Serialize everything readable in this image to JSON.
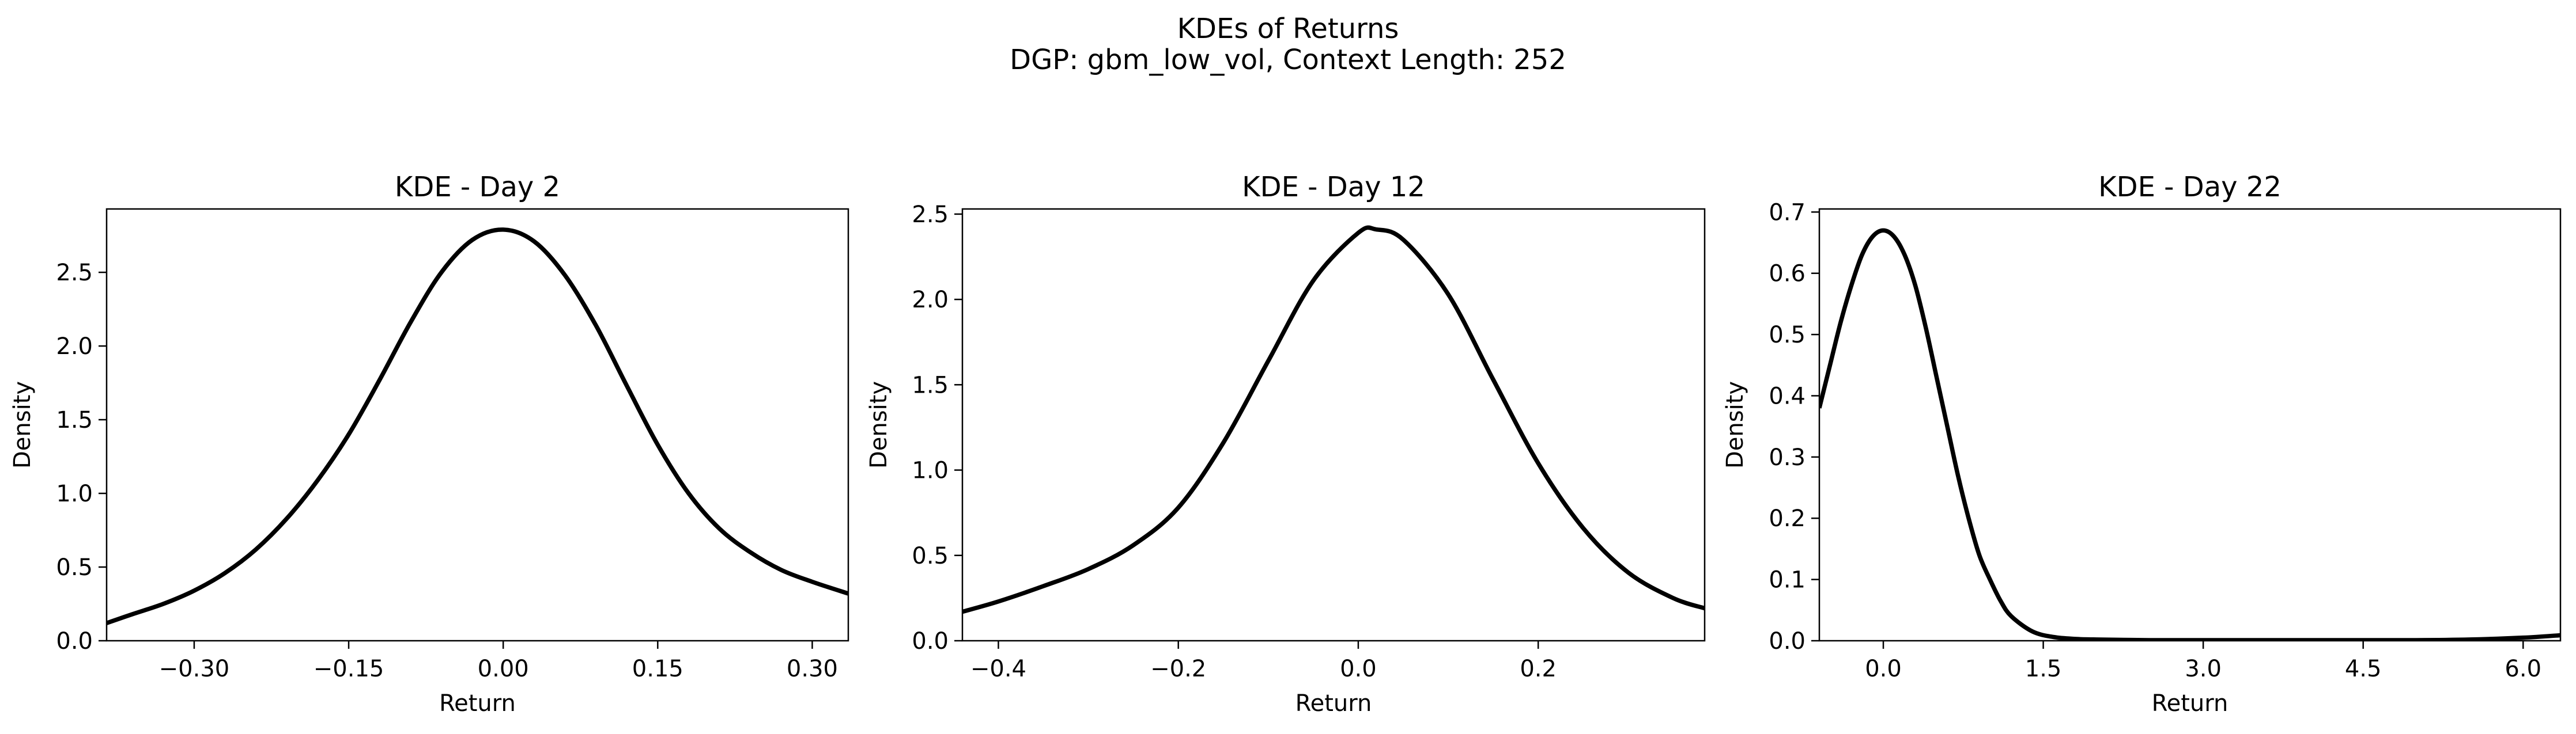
{
  "figure": {
    "title_line1": "KDEs of Returns",
    "title_line2": "DGP: gbm_low_vol, Context Length: 252"
  },
  "colors": {
    "line": "#000000",
    "axes": "#000000",
    "background": "#ffffff"
  },
  "chart_data": [
    {
      "type": "line",
      "title": "KDE - Day 2",
      "xlabel": "Return",
      "ylabel": "Density",
      "xlim": [
        -0.385,
        0.335
      ],
      "ylim": [
        0,
        2.93
      ],
      "xticks": [
        -0.3,
        -0.15,
        0.0,
        0.15,
        0.3
      ],
      "xtick_labels": [
        "−0.30",
        "−0.15",
        "0.00",
        "0.15",
        "0.30"
      ],
      "yticks": [
        0.0,
        0.5,
        1.0,
        1.5,
        2.0,
        2.5
      ],
      "ytick_labels": [
        "0.0",
        "0.5",
        "1.0",
        "1.5",
        "2.0",
        "2.5"
      ],
      "grid": false,
      "series": [
        {
          "x": [
            -0.385,
            -0.36,
            -0.33,
            -0.3,
            -0.27,
            -0.24,
            -0.21,
            -0.18,
            -0.15,
            -0.12,
            -0.09,
            -0.06,
            -0.03,
            0.0,
            0.03,
            0.06,
            0.09,
            0.12,
            0.15,
            0.18,
            0.21,
            0.24,
            0.27,
            0.3,
            0.335
          ],
          "y": [
            0.12,
            0.18,
            0.25,
            0.34,
            0.46,
            0.62,
            0.83,
            1.09,
            1.4,
            1.77,
            2.16,
            2.5,
            2.72,
            2.79,
            2.71,
            2.48,
            2.14,
            1.73,
            1.33,
            1.0,
            0.76,
            0.6,
            0.48,
            0.4,
            0.32
          ]
        }
      ]
    },
    {
      "type": "line",
      "title": "KDE - Day 12",
      "xlabel": "Return",
      "ylabel": "Density",
      "xlim": [
        -0.44,
        0.385
      ],
      "ylim": [
        0,
        2.53
      ],
      "xticks": [
        -0.4,
        -0.2,
        0.0,
        0.2
      ],
      "xtick_labels": [
        "−0.4",
        "−0.2",
        "0.0",
        "0.2"
      ],
      "yticks": [
        0.0,
        0.5,
        1.0,
        1.5,
        2.0,
        2.5
      ],
      "ytick_labels": [
        "0.0",
        "0.5",
        "1.0",
        "1.5",
        "2.0",
        "2.5"
      ],
      "grid": false,
      "series": [
        {
          "x": [
            -0.44,
            -0.4,
            -0.35,
            -0.3,
            -0.25,
            -0.2,
            -0.15,
            -0.1,
            -0.05,
            0.0,
            0.02,
            0.05,
            0.1,
            0.15,
            0.2,
            0.25,
            0.3,
            0.35,
            0.385
          ],
          "y": [
            0.17,
            0.23,
            0.32,
            0.42,
            0.56,
            0.78,
            1.16,
            1.64,
            2.11,
            2.39,
            2.41,
            2.35,
            2.03,
            1.53,
            1.04,
            0.66,
            0.4,
            0.25,
            0.19
          ]
        }
      ]
    },
    {
      "type": "line",
      "title": "KDE - Day 22",
      "xlabel": "Return",
      "ylabel": "Density",
      "xlim": [
        -0.6,
        6.35
      ],
      "ylim": [
        0,
        0.705
      ],
      "xticks": [
        0.0,
        1.5,
        3.0,
        4.5,
        6.0
      ],
      "xtick_labels": [
        "0.0",
        "1.5",
        "3.0",
        "4.5",
        "6.0"
      ],
      "yticks": [
        0.0,
        0.1,
        0.2,
        0.3,
        0.4,
        0.5,
        0.6,
        0.7
      ],
      "ytick_labels": [
        "0.0",
        "0.1",
        "0.2",
        "0.3",
        "0.4",
        "0.5",
        "0.6",
        "0.7"
      ],
      "grid": false,
      "series": [
        {
          "x": [
            -0.6,
            -0.5,
            -0.4,
            -0.3,
            -0.2,
            -0.1,
            0.0,
            0.1,
            0.2,
            0.3,
            0.4,
            0.5,
            0.6,
            0.7,
            0.8,
            0.9,
            1.0,
            1.1,
            1.2,
            1.4,
            1.6,
            1.8,
            2.0,
            2.5,
            3.0,
            4.0,
            5.0,
            5.5,
            6.0,
            6.35
          ],
          "y": [
            0.38,
            0.45,
            0.52,
            0.58,
            0.63,
            0.66,
            0.67,
            0.66,
            0.63,
            0.58,
            0.51,
            0.43,
            0.35,
            0.27,
            0.2,
            0.14,
            0.1,
            0.065,
            0.04,
            0.015,
            0.006,
            0.003,
            0.002,
            0.001,
            0.001,
            0.001,
            0.001,
            0.002,
            0.005,
            0.009
          ]
        }
      ]
    }
  ]
}
